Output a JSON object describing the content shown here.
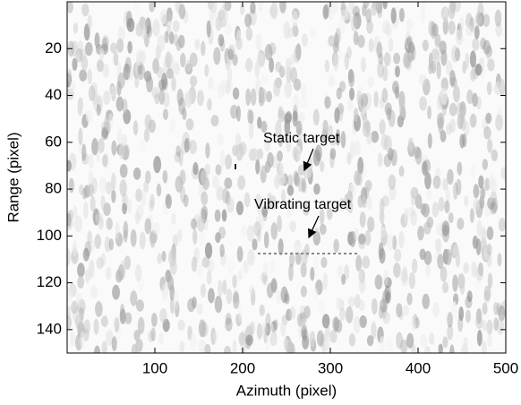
{
  "chart_data": {
    "type": "image",
    "xlabel": "Azimuth (pixel)",
    "ylabel": "Range (pixel)",
    "xlim": [
      0,
      500
    ],
    "ylim": [
      0,
      150
    ],
    "y_inverted": true,
    "xticks": [
      100,
      200,
      300,
      400,
      500
    ],
    "yticks": [
      20,
      40,
      60,
      80,
      100,
      120,
      140
    ],
    "annotations": [
      "Static target",
      "Vibrating target"
    ]
  }
}
